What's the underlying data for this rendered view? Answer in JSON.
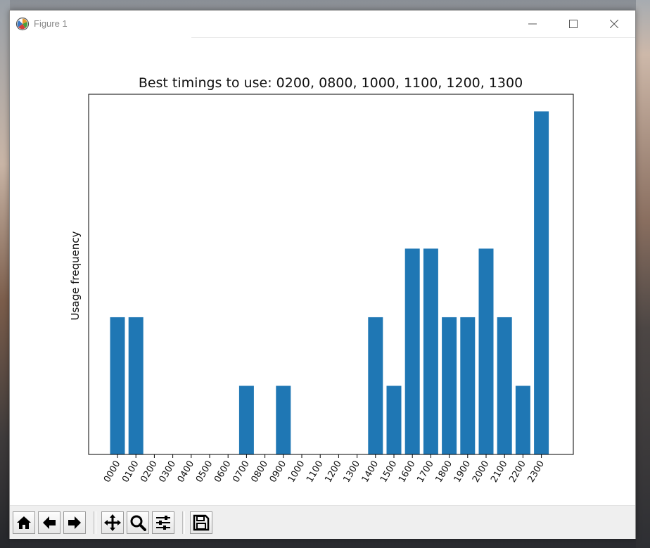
{
  "window": {
    "title": "Figure 1",
    "controls": [
      "minimize",
      "maximize",
      "close"
    ]
  },
  "toolbar": {
    "buttons": [
      {
        "name": "home-button",
        "icon": "home-icon"
      },
      {
        "name": "back-button",
        "icon": "arrow-left-icon"
      },
      {
        "name": "forward-button",
        "icon": "arrow-right-icon"
      },
      {
        "name": "pan-button",
        "icon": "move-icon"
      },
      {
        "name": "zoom-button",
        "icon": "magnifier-icon"
      },
      {
        "name": "configure-subplots-button",
        "icon": "sliders-icon"
      },
      {
        "name": "save-button",
        "icon": "floppy-disk-icon"
      }
    ]
  },
  "chart_data": {
    "type": "bar",
    "title": "Best timings to use: 0200, 0800, 1000, 1100, 1200, 1300",
    "xlabel": "",
    "ylabel": "Usage frequency",
    "categories": [
      "0000",
      "0100",
      "0200",
      "0300",
      "0400",
      "0500",
      "0600",
      "0700",
      "0800",
      "0900",
      "1000",
      "1100",
      "1200",
      "1300",
      "1400",
      "1500",
      "1600",
      "1700",
      "1800",
      "1900",
      "2000",
      "2100",
      "2200",
      "2300"
    ],
    "values": [
      2,
      2,
      0,
      0,
      0,
      0,
      0,
      1,
      0,
      1,
      0,
      0,
      0,
      0,
      2,
      1,
      3,
      3,
      2,
      2,
      3,
      2,
      1,
      5
    ],
    "ylim": [
      0,
      5.25
    ],
    "color": "#1f77b4",
    "grid": false,
    "y_ticks_shown": false
  }
}
